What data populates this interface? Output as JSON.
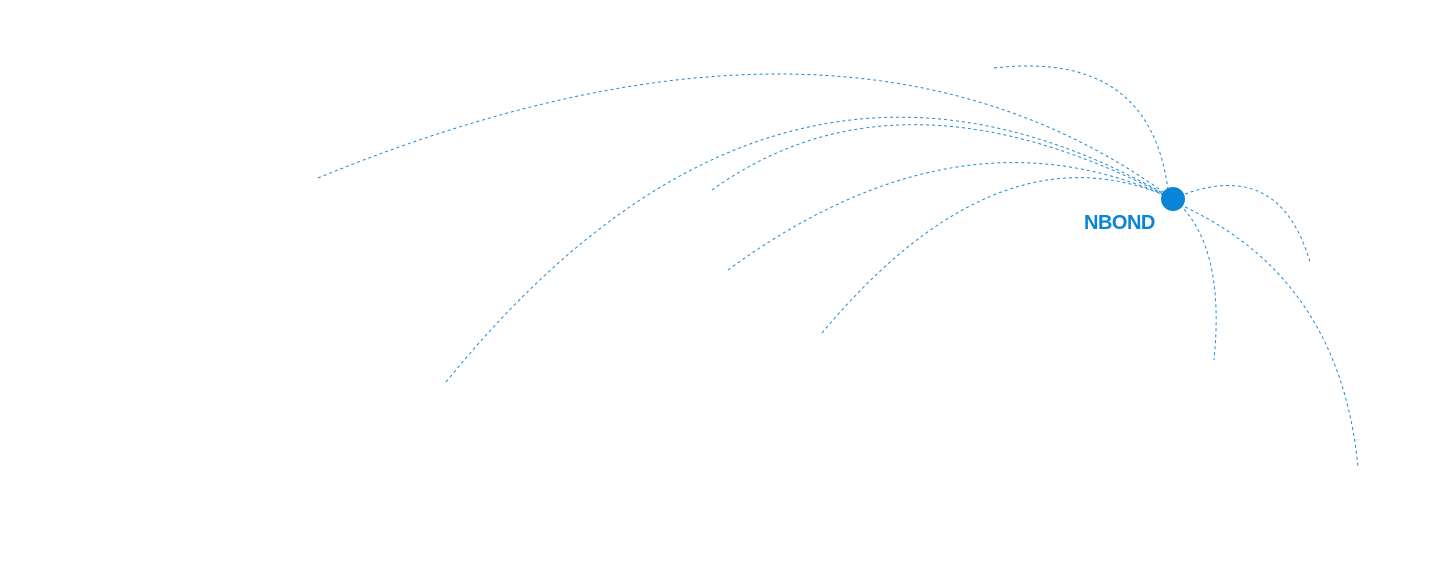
{
  "brand": {
    "label": "NBOND",
    "color": "#0a84d6"
  },
  "arc_color": "#1e8ad6",
  "hub_icon": "network-hub-dot"
}
